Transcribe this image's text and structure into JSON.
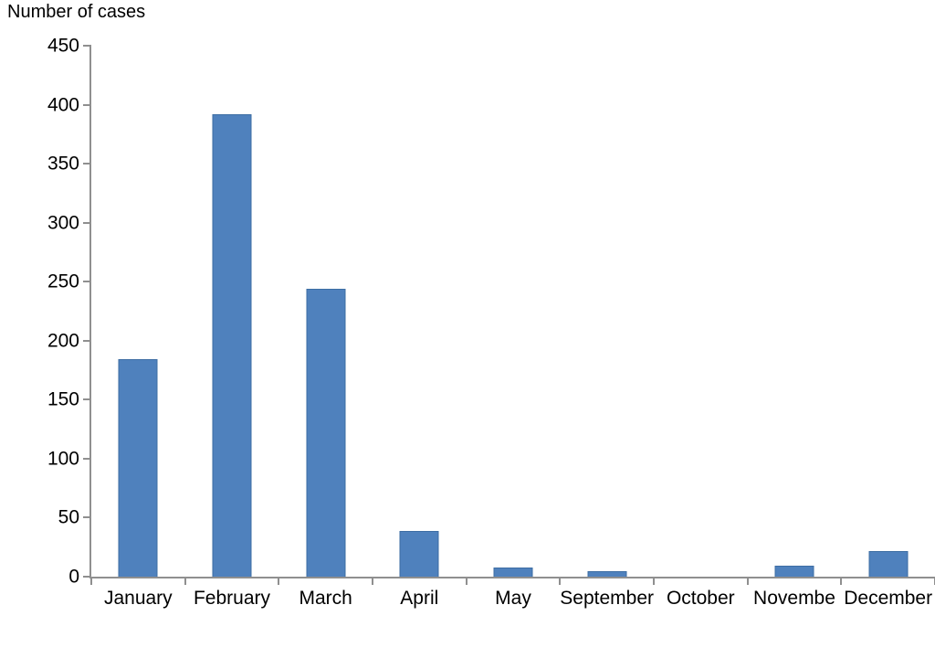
{
  "title": "Number of cases",
  "chart_data": {
    "type": "bar",
    "title": "Number of cases",
    "xlabel": "",
    "ylabel": "Number of cases",
    "categories": [
      "January",
      "February",
      "March",
      "April",
      "May",
      "September",
      "October",
      "Novembe",
      "December"
    ],
    "values": [
      184,
      392,
      244,
      39,
      8,
      5,
      0,
      9,
      22
    ],
    "ylim": [
      0,
      450
    ],
    "ytick_step": 50,
    "ytick_labels": [
      "0",
      "50",
      "100",
      "150",
      "200",
      "250",
      "300",
      "350",
      "400",
      "450"
    ],
    "grid": false,
    "legend": "none",
    "bar_color": "#4f81bd",
    "bar_border_color": "#3d6da3",
    "axis_color": "#8f8f8f",
    "text_color": "#000000"
  }
}
